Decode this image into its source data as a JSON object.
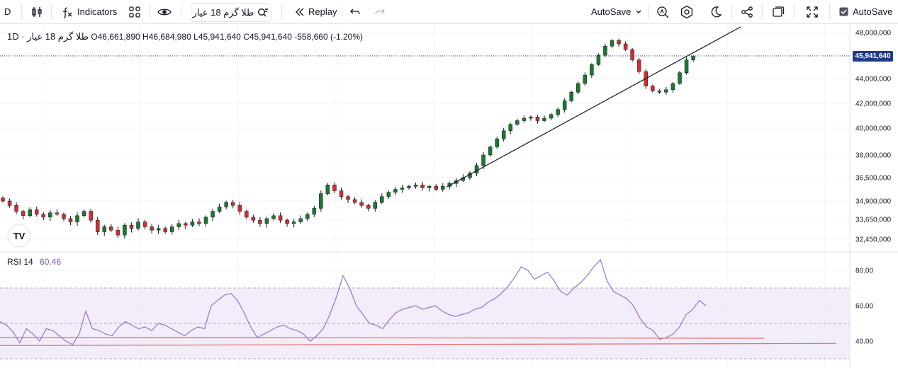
{
  "toolbar": {
    "interval": "D",
    "indicators_label": "Indicators",
    "symbol": "طلا گرم 18 عیار",
    "replay_label": "Replay",
    "autosave_label": "AutoSave",
    "autosave_check_label": "AutoSave"
  },
  "legend": {
    "title": "طلا گرم 18 عیار · 1D",
    "open": "O46,661,890",
    "high": "H46,684,980",
    "low": "L45,941,640",
    "close": "C45,941,640",
    "change": "-558,660 (-1.20%)",
    "rsi_name": "RSI 14",
    "rsi_value": "60.46"
  },
  "price_tag": "45,941,640",
  "logo_text": "TV",
  "colors": {
    "up": "#22ab94",
    "up_dark": "#1b7a2e",
    "down": "#d32f2f",
    "rsi_line": "#9575cd",
    "rsi_band": "#ede7f6",
    "trend_red": "#e57373",
    "accent": "#2962ff"
  },
  "chart_data": [
    {
      "type": "candlestick",
      "title": "طلا گرم 18 عیار · 1D",
      "y_ticks": [
        "48,000,000",
        "46,000,000",
        "44,000,000",
        "42,000,000",
        "40,000,000",
        "38,000,000",
        "36,500,000",
        "34,900,000",
        "33,650,000",
        "32,450,000"
      ],
      "last_price": "45,941,640",
      "close_series_millions": [
        34.9,
        34.6,
        34.2,
        33.9,
        34.3,
        34.0,
        33.8,
        34.1,
        34.0,
        33.7,
        33.5,
        33.9,
        34.2,
        33.6,
        32.9,
        33.2,
        33.0,
        32.7,
        33.3,
        33.1,
        33.5,
        33.2,
        33.0,
        33.1,
        32.9,
        33.2,
        33.4,
        33.3,
        33.5,
        33.4,
        33.8,
        34.2,
        34.5,
        34.8,
        34.6,
        34.2,
        33.8,
        33.6,
        33.4,
        33.7,
        33.9,
        33.6,
        33.4,
        33.5,
        33.7,
        34.0,
        34.4,
        35.4,
        36.0,
        35.6,
        35.2,
        35.0,
        34.8,
        34.6,
        34.4,
        34.8,
        35.2,
        35.5,
        35.7,
        35.8,
        35.9,
        36.0,
        35.8,
        35.9,
        35.7,
        35.9,
        36.1,
        36.3,
        36.5,
        36.8,
        37.3,
        38.0,
        38.6,
        39.2,
        39.8,
        40.3,
        40.6,
        40.8,
        40.9,
        40.6,
        40.8,
        41.1,
        41.5,
        42.2,
        42.9,
        43.6,
        44.3,
        45.2,
        46.0,
        46.8,
        47.3,
        47.0,
        46.5,
        45.6,
        44.6,
        43.4,
        43.0,
        42.9,
        43.1,
        43.6,
        44.5,
        45.6,
        45.9
      ]
    },
    {
      "type": "line",
      "title": "RSI 14",
      "y_ticks": [
        "80.00",
        "60.00",
        "40.00"
      ],
      "ylim": [
        30,
        87
      ],
      "bands": [
        30,
        50,
        70
      ],
      "last_value": 60.46,
      "series": [
        {
          "values": [
            51,
            49,
            45,
            39,
            47,
            44,
            40,
            47,
            46,
            43,
            40,
            38,
            44,
            57,
            47,
            46,
            44,
            43,
            48,
            51,
            49,
            47,
            48,
            46,
            50,
            49,
            47,
            45,
            43,
            46,
            48,
            47,
            60,
            63,
            66,
            67,
            63,
            56,
            48,
            42,
            44,
            46,
            48,
            49,
            47,
            46,
            44,
            40,
            43,
            47,
            55,
            65,
            77,
            70,
            60,
            55,
            50,
            49,
            47,
            52,
            56,
            58,
            59,
            60,
            58,
            59,
            60,
            57,
            55,
            54,
            55,
            56,
            58,
            59,
            62,
            64,
            67,
            71,
            76,
            82,
            80,
            75,
            77,
            79,
            74,
            68,
            66,
            70,
            73,
            77,
            82,
            86,
            74,
            68,
            66,
            64,
            60,
            53,
            48,
            46,
            41,
            42,
            44,
            48,
            55,
            58,
            63,
            60
          ]
        },
        {
          "values": [
            40.5,
            42.0
          ]
        },
        {
          "values": [
            37.5,
            39.5
          ]
        }
      ]
    }
  ]
}
